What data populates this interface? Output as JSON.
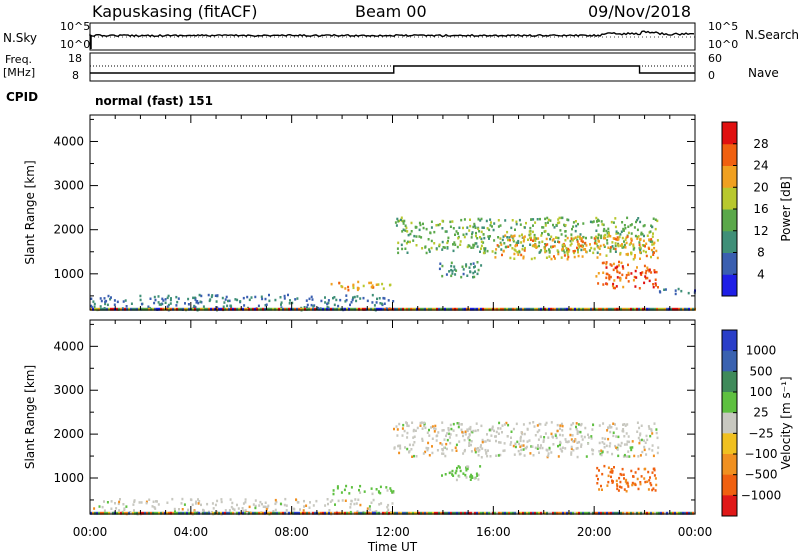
{
  "header": {
    "station": "Kapuskasing (fitACF)",
    "beam": "Beam 00",
    "date": "09/Nov/2018"
  },
  "strip": {
    "nsky_label": "N.Sky",
    "nsearch_label": "N.Search",
    "nsky_ticks": [
      "10^5",
      "10^0"
    ],
    "nsearch_ticks": [
      "10^5",
      "10^0"
    ],
    "freq_label_line1": "Freq.",
    "freq_label_line2": "[MHz]",
    "freq_ticks": [
      "18",
      "8"
    ],
    "nave_label": "Nave",
    "nave_ticks": [
      "60",
      "0"
    ],
    "cpid_label": "CPID",
    "mode_text": "normal (fast) 151"
  },
  "axes": {
    "ylabel": "Slant Range [km]",
    "xlabel": "Time UT",
    "x_ticks": [
      "00:00",
      "04:00",
      "08:00",
      "12:00",
      "16:00",
      "20:00",
      "00:00"
    ],
    "y_ticks": [
      "1000",
      "2000",
      "3000",
      "4000"
    ]
  },
  "power_colorbar": {
    "label": "Power [dB]",
    "ticks": [
      "4",
      "8",
      "12",
      "16",
      "20",
      "24",
      "28"
    ],
    "colors": [
      "#1f1fe6",
      "#3a5fb0",
      "#3f8f78",
      "#5aa84a",
      "#b8c82e",
      "#f0a020",
      "#f06010",
      "#e01010"
    ]
  },
  "velocity_colorbar": {
    "label": "Velocity [m s⁻¹]",
    "ticks": [
      "1000",
      "500",
      "100",
      "25",
      "−25",
      "−100",
      "−500",
      "−1000"
    ],
    "colors": [
      "#2a3ec8",
      "#3a62b0",
      "#3f8a5a",
      "#5ec040",
      "#c8c8c0",
      "#f0c020",
      "#f09020",
      "#f06010",
      "#e01818"
    ]
  },
  "chart_data": [
    {
      "type": "heatmap",
      "title": "Power",
      "xlabel": "Time UT",
      "ylabel": "Slant Range [km]",
      "xlim_hours": [
        0,
        24
      ],
      "ylim_km": [
        180,
        4600
      ],
      "colorbar_range": [
        0,
        32
      ],
      "regions": [
        {
          "t": [
            0,
            12
          ],
          "r": [
            200,
            550
          ],
          "level": 8
        },
        {
          "t": [
            9.5,
            12
          ],
          "r": [
            650,
            850
          ],
          "level": 22
        },
        {
          "t": [
            12,
            22.5
          ],
          "r": [
            1500,
            2300
          ],
          "level": 14
        },
        {
          "t": [
            13.8,
            15.5
          ],
          "r": [
            950,
            1300
          ],
          "level": 10
        },
        {
          "t": [
            16,
            22.5
          ],
          "r": [
            1350,
            1900
          ],
          "level": 22
        },
        {
          "t": [
            20,
            22.5
          ],
          "r": [
            700,
            1300
          ],
          "level": 26
        },
        {
          "t": [
            22.5,
            24
          ],
          "r": [
            550,
            700
          ],
          "level": 6
        }
      ]
    },
    {
      "type": "heatmap",
      "title": "Velocity",
      "xlabel": "Time UT",
      "ylabel": "Slant Range [km]",
      "xlim_hours": [
        0,
        24
      ],
      "ylim_km": [
        180,
        4600
      ],
      "regions": [
        {
          "t": [
            0,
            12
          ],
          "r": [
            200,
            550
          ],
          "velocity": 0
        },
        {
          "t": [
            9.5,
            12
          ],
          "r": [
            650,
            850
          ],
          "velocity": 150
        },
        {
          "t": [
            12,
            22.5
          ],
          "r": [
            1500,
            2300
          ],
          "velocity": 0
        },
        {
          "t": [
            13.8,
            15.5
          ],
          "r": [
            950,
            1300
          ],
          "velocity": 100
        },
        {
          "t": [
            20,
            22.5
          ],
          "r": [
            700,
            1300
          ],
          "velocity": -500
        }
      ]
    }
  ]
}
